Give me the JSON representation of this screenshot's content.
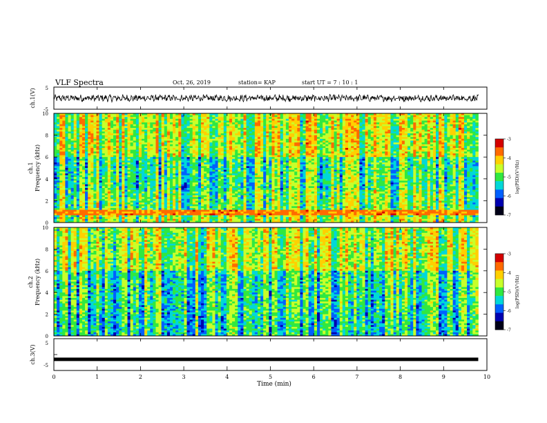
{
  "header": {
    "title": "VLF Spectra",
    "date": "Oct. 26, 2019",
    "station": "station= KAP",
    "start": "start  UT  =   7 : 10 : 1"
  },
  "colorbar": {
    "label": "log(PSD)(V²/Hz)",
    "ticks": [
      "-3",
      "-4",
      "-5",
      "-6",
      "-7"
    ],
    "colors": [
      "#d40000",
      "#ff6a00",
      "#ffd000",
      "#c8ff2a",
      "#30e840",
      "#00d8d8",
      "#0060ff",
      "#0000b0",
      "#000018"
    ]
  },
  "chart_data": [
    {
      "type": "line",
      "title": "",
      "ylabel": "ch.1(V)",
      "xlabel": "",
      "ylim": [
        -5,
        5
      ],
      "yticks": [
        "5",
        "-5"
      ],
      "xlim": [
        0,
        10
      ],
      "series": [
        {
          "values_description": "",
          "x_range": [
            0,
            9.8
          ],
          "mean": 0,
          "amplitude": 1.6
        }
      ]
    },
    {
      "type": "heatmap",
      "ylabel": "ch.1",
      "ylabel2": "Frequency (kHz)",
      "xlim": [
        0,
        10
      ],
      "ylim": [
        0,
        10
      ],
      "yticks": [
        "10",
        "8",
        "6",
        "4",
        "2",
        "0"
      ],
      "zlim": [
        -7,
        -3
      ],
      "data_x_range": [
        0,
        9.8
      ]
    },
    {
      "type": "heatmap",
      "ylabel": "ch.2",
      "ylabel2": "Frequency (kHz)",
      "xlim": [
        0,
        10
      ],
      "ylim": [
        0,
        10
      ],
      "yticks": [
        "10",
        "8",
        "6",
        "4",
        "2",
        "0"
      ],
      "zlim": [
        -7,
        -3
      ],
      "data_x_range": [
        0,
        9.8
      ]
    },
    {
      "type": "line",
      "ylabel": "ch.3(V)",
      "xlabel": "Time (min)",
      "ylim": [
        -5,
        5
      ],
      "yticks": [
        "5",
        "-5"
      ],
      "xlim": [
        0,
        10
      ],
      "xticks": [
        "0",
        "1",
        "2",
        "3",
        "4",
        "5",
        "6",
        "7",
        "8",
        "9",
        "10"
      ],
      "series": [
        {
          "x_range": [
            0,
            9.8
          ],
          "value": -1.5
        }
      ]
    }
  ]
}
